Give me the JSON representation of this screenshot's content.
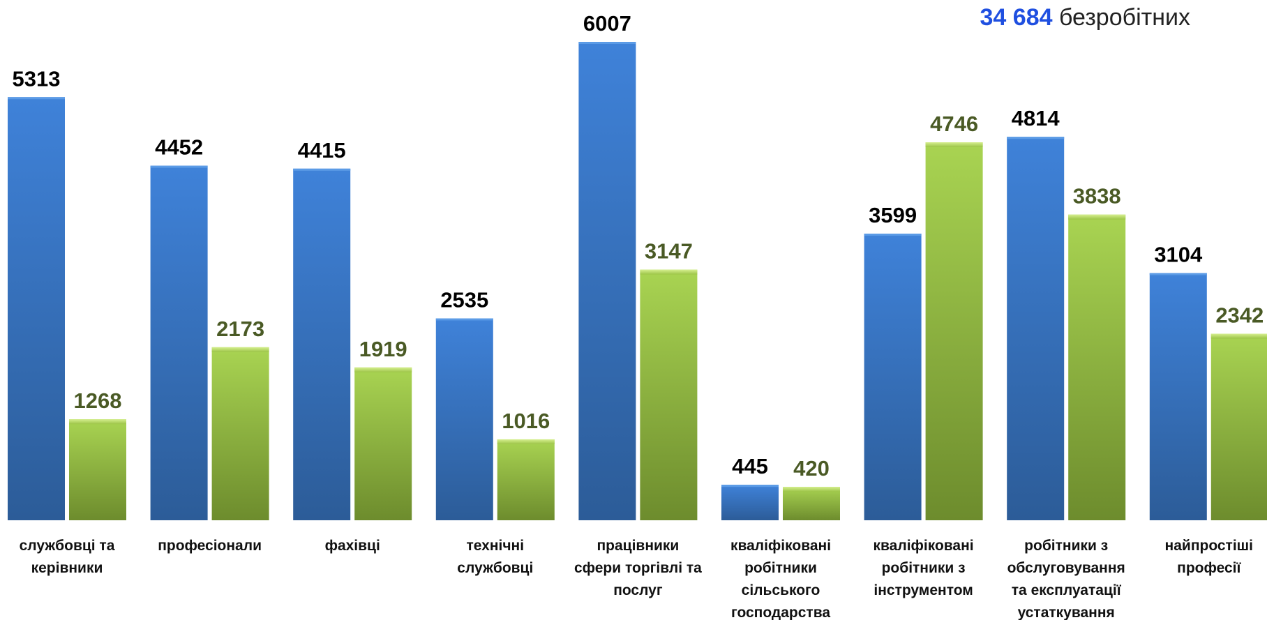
{
  "header": {
    "total_value": "34 684",
    "total_label": "безробітних"
  },
  "colors": {
    "series_blue": "#3a7bd5",
    "series_blue_dark": "#2d5f9e",
    "series_green": "#a4cf4d",
    "series_green_dark": "#6f8f2e",
    "green_label": "#4a5a25",
    "total_accent": "#1f4fe0"
  },
  "chart_data": {
    "type": "bar",
    "categories": [
      [
        "службовці та",
        "керівники"
      ],
      [
        "професіонали"
      ],
      [
        "фахівці"
      ],
      [
        "технічні",
        "службовці"
      ],
      [
        "працівники",
        "сфери торгівлі та",
        "послуг"
      ],
      [
        "кваліфіковані",
        "робітники",
        "сільського",
        "господарства"
      ],
      [
        "кваліфіковані",
        "робітники з",
        "інструментом"
      ],
      [
        "робітники з",
        "обслуговування",
        "та експлуатації",
        "устаткування"
      ],
      [
        "найпростіші",
        "професії"
      ]
    ],
    "series": [
      {
        "values": [
          5313,
          4452,
          4415,
          2535,
          6007,
          445,
          3599,
          4814,
          3104
        ]
      },
      {
        "values": [
          1268,
          2173,
          1919,
          1016,
          3147,
          420,
          4746,
          3838,
          2342
        ]
      }
    ],
    "ylim": [
      0,
      6007
    ],
    "grid": false,
    "legend": "none"
  }
}
